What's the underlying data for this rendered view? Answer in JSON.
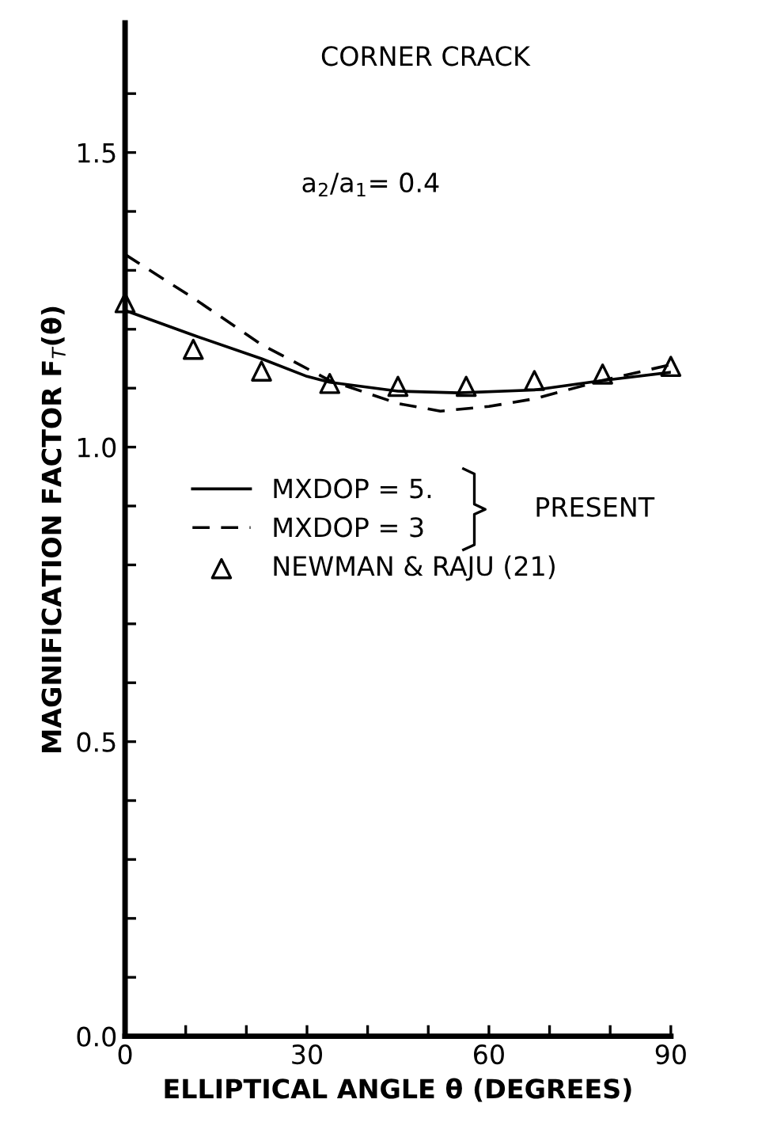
{
  "chart_data": {
    "type": "line",
    "xlabel": "ELLIPTICAL ANGLE θ (DEGREES)",
    "ylabel": "MAGNIFICATION FACTOR F$_{T}$(θ)",
    "annotations": [
      "CORNER CRACK",
      "a$_{2}$/a$_{1}$= 0.4",
      "PRESENT"
    ],
    "xlim": [
      0,
      90
    ],
    "ylim": [
      0,
      1.72
    ],
    "xticks": [
      0,
      {
        "value": 10,
        "label": null
      },
      {
        "value": 20,
        "label": null
      },
      30,
      {
        "value": 40,
        "label": null
      },
      {
        "value": 50,
        "label": null
      },
      60,
      {
        "value": 70,
        "label": null
      },
      {
        "value": 80,
        "label": null
      },
      90
    ],
    "yticks": [
      {
        "value": 0,
        "label": "0.0"
      },
      {
        "value": 0.1,
        "label": null
      },
      {
        "value": 0.2,
        "label": null
      },
      {
        "value": 0.3,
        "label": null
      },
      {
        "value": 0.4,
        "label": null
      },
      0.5,
      {
        "value": 0.6,
        "label": null
      },
      {
        "value": 0.7,
        "label": null
      },
      {
        "value": 0.8,
        "label": null
      },
      {
        "value": 0.9,
        "label": null
      },
      {
        "value": 1.0,
        "label": "1.0"
      },
      {
        "value": 1.1,
        "label": null
      },
      {
        "value": 1.2,
        "label": null
      },
      {
        "value": 1.3,
        "label": null
      },
      {
        "value": 1.4,
        "label": null
      },
      1.5,
      {
        "value": 1.6,
        "label": null
      }
    ],
    "grid": false,
    "legend": "center left",
    "series": [
      {
        "name": "MXDOP = 5.",
        "color": "#000000",
        "line_style": "solid",
        "marker": "none",
        "x": [
          0,
          11.25,
          22.5,
          30,
          33.75,
          45,
          55,
          67.5,
          78.75,
          90
        ],
        "values": [
          1.232,
          1.19,
          1.15,
          1.12,
          1.11,
          1.095,
          1.092,
          1.097,
          1.113,
          1.127
        ]
      },
      {
        "name": "MXDOP = 3",
        "color": "#000000",
        "line_style": "dashed",
        "marker": "none",
        "x": [
          0,
          11.25,
          22.5,
          33.75,
          45,
          52,
          60,
          67.5,
          78.75,
          90
        ],
        "values": [
          1.327,
          1.253,
          1.174,
          1.113,
          1.074,
          1.061,
          1.069,
          1.082,
          1.113,
          1.14
        ]
      },
      {
        "name": "NEWMAN & RAJU (21)",
        "type": "scatter",
        "color": "#000000",
        "marker": "triangle",
        "x": [
          0,
          11.25,
          22.5,
          33.75,
          45,
          56.25,
          67.5,
          78.75,
          90
        ],
        "values": [
          1.245,
          1.166,
          1.129,
          1.108,
          1.103,
          1.103,
          1.113,
          1.124,
          1.137
        ]
      }
    ]
  }
}
